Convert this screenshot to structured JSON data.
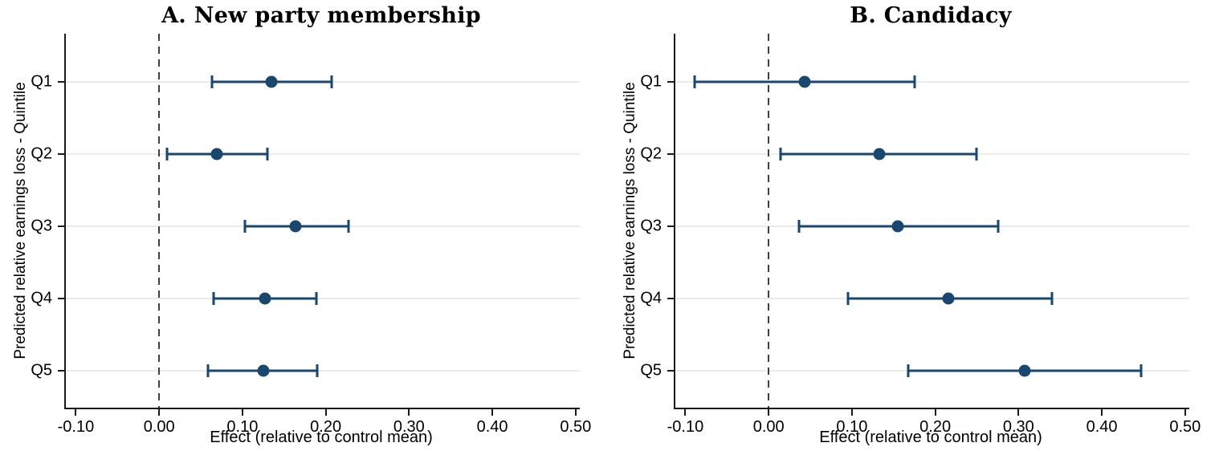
{
  "colors": {
    "marker": "#1a476f",
    "ci": "#1a476f",
    "grid": "#ebebeb",
    "axis": "#1a1a1a",
    "zero_line": "#404040",
    "background": "#ffffff",
    "text": "#000000"
  },
  "chart_data": [
    {
      "type": "scatter",
      "subtype": "coefficient-plot-with-ci",
      "panel": "A",
      "title": "A. New party membership",
      "xlabel": "Effect (relative to control mean)",
      "ylabel": "Predicted relative earnings loss - Quintile",
      "categories": [
        "Q1",
        "Q2",
        "Q3",
        "Q4",
        "Q5"
      ],
      "series": [
        {
          "name": "Effect (point estimate)",
          "values": [
            0.135,
            0.069,
            0.164,
            0.127,
            0.125
          ],
          "ci_low": [
            0.063,
            0.009,
            0.103,
            0.065,
            0.059
          ],
          "ci_high": [
            0.207,
            0.13,
            0.227,
            0.189,
            0.19
          ]
        }
      ],
      "xlim": [
        -0.112,
        0.505
      ],
      "xticks": [
        -0.1,
        0.0,
        0.1,
        0.2,
        0.3,
        0.4,
        0.5
      ],
      "xtick_labels": [
        "-0.10",
        "0.00",
        "0.10",
        "0.20",
        "0.30",
        "0.40",
        "0.50"
      ],
      "zero_reference_line": 0,
      "grid": "horizontal-only",
      "legend": "none"
    },
    {
      "type": "scatter",
      "subtype": "coefficient-plot-with-ci",
      "panel": "B",
      "title": "B. Candidacy",
      "xlabel": "Effect (relative to control mean)",
      "ylabel": "Predicted relative earnings loss - Quintile",
      "categories": [
        "Q1",
        "Q2",
        "Q3",
        "Q4",
        "Q5"
      ],
      "series": [
        {
          "name": "Effect (point estimate)",
          "values": [
            0.043,
            0.133,
            0.155,
            0.216,
            0.307
          ],
          "ci_low": [
            -0.089,
            0.014,
            0.036,
            0.095,
            0.168
          ],
          "ci_high": [
            0.175,
            0.25,
            0.276,
            0.34,
            0.447
          ]
        }
      ],
      "xlim": [
        -0.112,
        0.505
      ],
      "xticks": [
        -0.1,
        0.0,
        0.1,
        0.2,
        0.3,
        0.4,
        0.5
      ],
      "xtick_labels": [
        "-0.10",
        "0.00",
        "0.10",
        "0.20",
        "0.30",
        "0.40",
        "0.50"
      ],
      "zero_reference_line": 0,
      "grid": "horizontal-only",
      "legend": "none"
    }
  ]
}
